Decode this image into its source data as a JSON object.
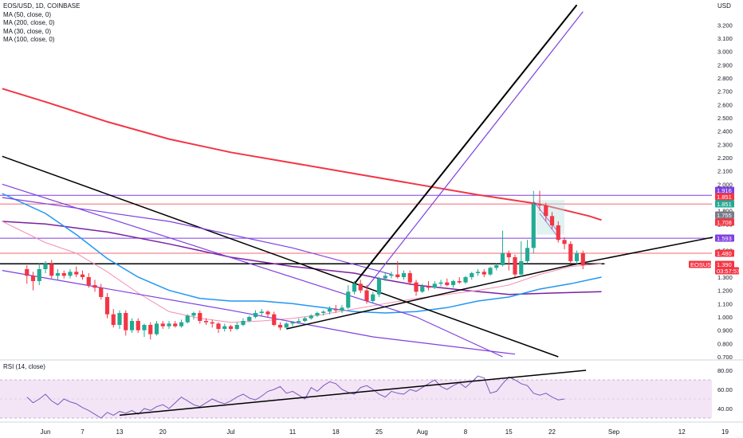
{
  "legend": {
    "symbol": "EOS/USD, 1D, COINBASE",
    "ma50": "MA (50, close, 0)",
    "ma200": "MA (200, close, 0)",
    "ma30": "MA (30, close, 0)",
    "ma100": "MA (100, close, 0)"
  },
  "rsi_label": "RSI (14, close)",
  "currency": "USD",
  "chart_data": {
    "type": "candlestick",
    "symbol": "EOS/USD",
    "interval": "1D",
    "exchange": "COINBASE",
    "price_ticks": [
      "3.200",
      "3.100",
      "3.000",
      "2.900",
      "2.800",
      "2.700",
      "2.600",
      "2.500",
      "2.400",
      "2.300",
      "2.200",
      "2.100",
      "2.000",
      "1.900",
      "1.800",
      "1.700",
      "1.600",
      "1.500",
      "1.400",
      "1.300",
      "1.200",
      "1.100",
      "1.000",
      "0.900",
      "0.800",
      "0.700"
    ],
    "price_tick_values": [
      3.2,
      3.1,
      3.0,
      2.9,
      2.8,
      2.7,
      2.6,
      2.5,
      2.4,
      2.3,
      2.2,
      2.1,
      2.0,
      1.9,
      1.8,
      1.7,
      1.6,
      1.5,
      1.4,
      1.3,
      1.2,
      1.1,
      1.0,
      0.9,
      0.8,
      0.7
    ],
    "rsi_ticks": [
      "80.00",
      "60.00",
      "40.00"
    ],
    "rsi_tick_values": [
      80,
      60,
      40
    ],
    "x_ticks": [
      "Jun",
      "7",
      "13",
      "20",
      "Jul",
      "11",
      "18",
      "25",
      "Aug",
      "8",
      "15",
      "22",
      "Sep",
      "12",
      "19"
    ],
    "x_tick_days": [
      0,
      6,
      12,
      19,
      30,
      40,
      47,
      54,
      61,
      68,
      75,
      82,
      92,
      103,
      110
    ],
    "price_tags": [
      {
        "label": "1.916",
        "value": 1.916,
        "color": "#7e3fe0"
      },
      {
        "label": "1.851",
        "value": 1.851,
        "color": "#f23645"
      },
      {
        "label": "1.851",
        "value": 1.851,
        "color": "#22ab94"
      },
      {
        "label": "1.755",
        "value": 1.755,
        "color": "#787b86"
      },
      {
        "label": "1.708",
        "value": 1.708,
        "color": "#f23645"
      },
      {
        "label": "1.593",
        "value": 1.593,
        "color": "#7e3fe0"
      },
      {
        "label": "1.480",
        "value": 1.48,
        "color": "#f23645"
      },
      {
        "label": "EOSUSD",
        "value": 1.4,
        "color": "#f23645"
      },
      {
        "label": "1.390",
        "value": 1.39,
        "color": "#f23645"
      },
      {
        "label": "03:57:57",
        "value": 1.345,
        "color": "#f23645"
      }
    ],
    "candles": [
      {
        "d": -3,
        "o": 1.36,
        "h": 1.39,
        "l": 1.25,
        "c": 1.31
      },
      {
        "d": -2,
        "o": 1.31,
        "h": 1.34,
        "l": 1.2,
        "c": 1.27
      },
      {
        "d": -1,
        "o": 1.27,
        "h": 1.4,
        "l": 1.24,
        "c": 1.36
      },
      {
        "d": 0,
        "o": 1.36,
        "h": 1.42,
        "l": 1.33,
        "c": 1.4
      },
      {
        "d": 1,
        "o": 1.4,
        "h": 1.43,
        "l": 1.29,
        "c": 1.31
      },
      {
        "d": 2,
        "o": 1.31,
        "h": 1.36,
        "l": 1.28,
        "c": 1.33
      },
      {
        "d": 3,
        "o": 1.33,
        "h": 1.35,
        "l": 1.29,
        "c": 1.31
      },
      {
        "d": 4,
        "o": 1.31,
        "h": 1.36,
        "l": 1.29,
        "c": 1.34
      },
      {
        "d": 5,
        "o": 1.34,
        "h": 1.38,
        "l": 1.3,
        "c": 1.32
      },
      {
        "d": 6,
        "o": 1.32,
        "h": 1.35,
        "l": 1.28,
        "c": 1.3
      },
      {
        "d": 7,
        "o": 1.3,
        "h": 1.33,
        "l": 1.22,
        "c": 1.24
      },
      {
        "d": 8,
        "o": 1.24,
        "h": 1.28,
        "l": 1.19,
        "c": 1.22
      },
      {
        "d": 9,
        "o": 1.22,
        "h": 1.25,
        "l": 1.13,
        "c": 1.15
      },
      {
        "d": 10,
        "o": 1.15,
        "h": 1.18,
        "l": 0.99,
        "c": 1.02
      },
      {
        "d": 11,
        "o": 1.02,
        "h": 1.06,
        "l": 0.92,
        "c": 0.94
      },
      {
        "d": 12,
        "o": 0.94,
        "h": 1.05,
        "l": 0.91,
        "c": 1.03
      },
      {
        "d": 13,
        "o": 1.03,
        "h": 1.05,
        "l": 0.86,
        "c": 0.9
      },
      {
        "d": 14,
        "o": 0.9,
        "h": 0.99,
        "l": 0.88,
        "c": 0.97
      },
      {
        "d": 15,
        "o": 0.97,
        "h": 0.99,
        "l": 0.88,
        "c": 0.9
      },
      {
        "d": 16,
        "o": 0.9,
        "h": 0.95,
        "l": 0.85,
        "c": 0.94
      },
      {
        "d": 17,
        "o": 0.94,
        "h": 0.96,
        "l": 0.83,
        "c": 0.87
      },
      {
        "d": 18,
        "o": 0.87,
        "h": 0.97,
        "l": 0.86,
        "c": 0.95
      },
      {
        "d": 19,
        "o": 0.95,
        "h": 0.97,
        "l": 0.91,
        "c": 0.93
      },
      {
        "d": 20,
        "o": 0.93,
        "h": 0.97,
        "l": 0.91,
        "c": 0.95
      },
      {
        "d": 21,
        "o": 0.95,
        "h": 0.97,
        "l": 0.92,
        "c": 0.93
      },
      {
        "d": 22,
        "o": 0.93,
        "h": 0.98,
        "l": 0.92,
        "c": 0.96
      },
      {
        "d": 23,
        "o": 0.96,
        "h": 1.02,
        "l": 0.95,
        "c": 1.01
      },
      {
        "d": 24,
        "o": 1.01,
        "h": 1.04,
        "l": 0.98,
        "c": 1.03
      },
      {
        "d": 25,
        "o": 1.03,
        "h": 1.05,
        "l": 0.95,
        "c": 0.97
      },
      {
        "d": 26,
        "o": 0.97,
        "h": 0.99,
        "l": 0.94,
        "c": 0.96
      },
      {
        "d": 27,
        "o": 0.96,
        "h": 0.98,
        "l": 0.92,
        "c": 0.95
      },
      {
        "d": 28,
        "o": 0.95,
        "h": 0.96,
        "l": 0.88,
        "c": 0.91
      },
      {
        "d": 29,
        "o": 0.91,
        "h": 0.95,
        "l": 0.89,
        "c": 0.93
      },
      {
        "d": 30,
        "o": 0.93,
        "h": 0.94,
        "l": 0.89,
        "c": 0.91
      },
      {
        "d": 31,
        "o": 0.91,
        "h": 0.96,
        "l": 0.9,
        "c": 0.94
      },
      {
        "d": 32,
        "o": 0.94,
        "h": 0.99,
        "l": 0.93,
        "c": 0.97
      },
      {
        "d": 33,
        "o": 0.97,
        "h": 1.01,
        "l": 0.96,
        "c": 1.0
      },
      {
        "d": 34,
        "o": 1.0,
        "h": 1.05,
        "l": 0.99,
        "c": 1.03
      },
      {
        "d": 35,
        "o": 1.03,
        "h": 1.06,
        "l": 1.01,
        "c": 1.04
      },
      {
        "d": 36,
        "o": 1.04,
        "h": 1.05,
        "l": 1.0,
        "c": 1.02
      },
      {
        "d": 37,
        "o": 1.02,
        "h": 1.04,
        "l": 0.93,
        "c": 0.94
      },
      {
        "d": 38,
        "o": 0.94,
        "h": 0.96,
        "l": 0.9,
        "c": 0.92
      },
      {
        "d": 39,
        "o": 0.92,
        "h": 0.96,
        "l": 0.91,
        "c": 0.95
      },
      {
        "d": 40,
        "o": 0.95,
        "h": 0.97,
        "l": 0.93,
        "c": 0.96
      },
      {
        "d": 41,
        "o": 0.96,
        "h": 0.99,
        "l": 0.95,
        "c": 0.97
      },
      {
        "d": 42,
        "o": 0.97,
        "h": 1.0,
        "l": 0.96,
        "c": 0.99
      },
      {
        "d": 43,
        "o": 0.99,
        "h": 1.02,
        "l": 0.98,
        "c": 1.01
      },
      {
        "d": 44,
        "o": 1.01,
        "h": 1.04,
        "l": 1.0,
        "c": 1.03
      },
      {
        "d": 45,
        "o": 1.03,
        "h": 1.05,
        "l": 1.01,
        "c": 1.04
      },
      {
        "d": 46,
        "o": 1.04,
        "h": 1.08,
        "l": 1.02,
        "c": 1.06
      },
      {
        "d": 47,
        "o": 1.06,
        "h": 1.09,
        "l": 1.03,
        "c": 1.05
      },
      {
        "d": 48,
        "o": 1.05,
        "h": 1.09,
        "l": 1.03,
        "c": 1.07
      },
      {
        "d": 49,
        "o": 1.07,
        "h": 1.24,
        "l": 1.06,
        "c": 1.19
      },
      {
        "d": 50,
        "o": 1.19,
        "h": 1.27,
        "l": 1.17,
        "c": 1.25
      },
      {
        "d": 51,
        "o": 1.25,
        "h": 1.28,
        "l": 1.18,
        "c": 1.2
      },
      {
        "d": 52,
        "o": 1.2,
        "h": 1.24,
        "l": 1.1,
        "c": 1.12
      },
      {
        "d": 53,
        "o": 1.12,
        "h": 1.19,
        "l": 1.1,
        "c": 1.17
      },
      {
        "d": 54,
        "o": 1.17,
        "h": 1.3,
        "l": 1.15,
        "c": 1.29
      },
      {
        "d": 55,
        "o": 1.29,
        "h": 1.33,
        "l": 1.27,
        "c": 1.31
      },
      {
        "d": 56,
        "o": 1.31,
        "h": 1.34,
        "l": 1.29,
        "c": 1.32
      },
      {
        "d": 57,
        "o": 1.32,
        "h": 1.42,
        "l": 1.29,
        "c": 1.3
      },
      {
        "d": 58,
        "o": 1.3,
        "h": 1.35,
        "l": 1.28,
        "c": 1.33
      },
      {
        "d": 59,
        "o": 1.33,
        "h": 1.35,
        "l": 1.24,
        "c": 1.26
      },
      {
        "d": 60,
        "o": 1.26,
        "h": 1.28,
        "l": 1.16,
        "c": 1.19
      },
      {
        "d": 61,
        "o": 1.19,
        "h": 1.25,
        "l": 1.18,
        "c": 1.23
      },
      {
        "d": 62,
        "o": 1.23,
        "h": 1.27,
        "l": 1.2,
        "c": 1.22
      },
      {
        "d": 63,
        "o": 1.22,
        "h": 1.27,
        "l": 1.21,
        "c": 1.25
      },
      {
        "d": 64,
        "o": 1.25,
        "h": 1.28,
        "l": 1.23,
        "c": 1.26
      },
      {
        "d": 65,
        "o": 1.26,
        "h": 1.29,
        "l": 1.23,
        "c": 1.24
      },
      {
        "d": 66,
        "o": 1.24,
        "h": 1.28,
        "l": 1.22,
        "c": 1.27
      },
      {
        "d": 67,
        "o": 1.27,
        "h": 1.3,
        "l": 1.25,
        "c": 1.26
      },
      {
        "d": 68,
        "o": 1.26,
        "h": 1.31,
        "l": 1.25,
        "c": 1.3
      },
      {
        "d": 69,
        "o": 1.3,
        "h": 1.34,
        "l": 1.28,
        "c": 1.33
      },
      {
        "d": 70,
        "o": 1.33,
        "h": 1.36,
        "l": 1.31,
        "c": 1.34
      },
      {
        "d": 71,
        "o": 1.34,
        "h": 1.36,
        "l": 1.3,
        "c": 1.32
      },
      {
        "d": 72,
        "o": 1.32,
        "h": 1.38,
        "l": 1.31,
        "c": 1.37
      },
      {
        "d": 73,
        "o": 1.37,
        "h": 1.4,
        "l": 1.35,
        "c": 1.39
      },
      {
        "d": 74,
        "o": 1.39,
        "h": 1.65,
        "l": 1.38,
        "c": 1.48
      },
      {
        "d": 75,
        "o": 1.48,
        "h": 1.5,
        "l": 1.35,
        "c": 1.45
      },
      {
        "d": 76,
        "o": 1.45,
        "h": 1.47,
        "l": 1.3,
        "c": 1.32
      },
      {
        "d": 77,
        "o": 1.32,
        "h": 1.57,
        "l": 1.3,
        "c": 1.42
      },
      {
        "d": 78,
        "o": 1.42,
        "h": 1.58,
        "l": 1.4,
        "c": 1.52
      },
      {
        "d": 79,
        "o": 1.52,
        "h": 1.95,
        "l": 1.48,
        "c": 1.85
      },
      {
        "d": 80,
        "o": 1.85,
        "h": 1.95,
        "l": 1.8,
        "c": 1.84
      },
      {
        "d": 81,
        "o": 1.84,
        "h": 1.86,
        "l": 1.72,
        "c": 1.76
      },
      {
        "d": 82,
        "o": 1.76,
        "h": 1.79,
        "l": 1.66,
        "c": 1.69
      },
      {
        "d": 83,
        "o": 1.69,
        "h": 1.72,
        "l": 1.56,
        "c": 1.58
      },
      {
        "d": 84,
        "o": 1.58,
        "h": 1.6,
        "l": 1.51,
        "c": 1.55
      },
      {
        "d": 85,
        "o": 1.55,
        "h": 1.57,
        "l": 1.4,
        "c": 1.42
      },
      {
        "d": 86,
        "o": 1.42,
        "h": 1.5,
        "l": 1.4,
        "c": 1.48
      },
      {
        "d": 87,
        "o": 1.48,
        "h": 1.5,
        "l": 1.36,
        "c": 1.39
      }
    ],
    "rsi_start": 68,
    "rsi_values": [
      52,
      46,
      50,
      55,
      48,
      44,
      50,
      47,
      45,
      41,
      38,
      34,
      30,
      36,
      33,
      37,
      35,
      38,
      34,
      40,
      38,
      42,
      44,
      40,
      46,
      52,
      48,
      44,
      42,
      46,
      50,
      47,
      45,
      48,
      52,
      55,
      51,
      49,
      53,
      58,
      60,
      63,
      56,
      58,
      54,
      50,
      62,
      58,
      64,
      68,
      66,
      60,
      57,
      55,
      62,
      64,
      60,
      55,
      52,
      58,
      56,
      55,
      60,
      58,
      62,
      66,
      70,
      63,
      60,
      64,
      67,
      62,
      68,
      74,
      72,
      56,
      58,
      66,
      73,
      70,
      66,
      64,
      56,
      54,
      56,
      52,
      49,
      50
    ]
  }
}
